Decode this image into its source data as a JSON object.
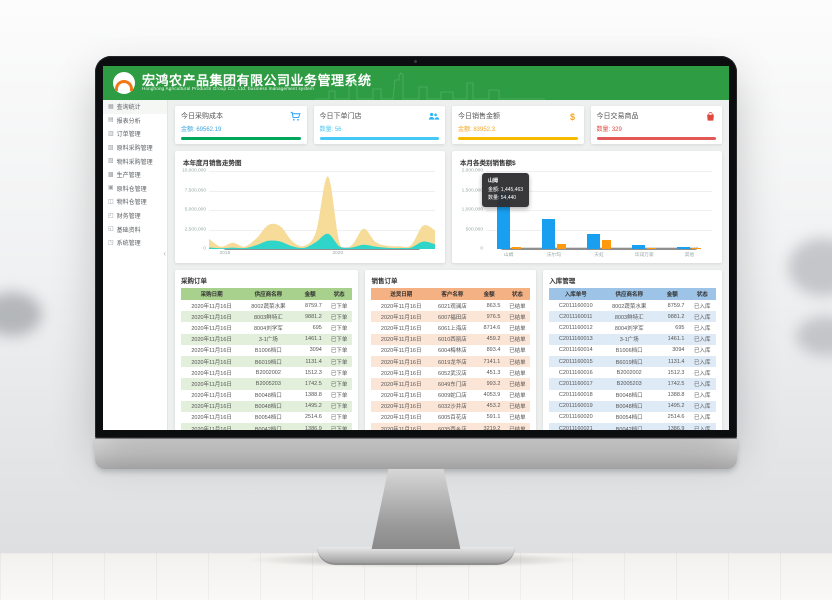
{
  "header": {
    "title": "宏鸿农产品集团有限公司业务管理系统",
    "subtitle": "Honghong Agricultural Products Group Co., Ltd. business management system",
    "logo_icon": "orange-arch-logo",
    "accent_color": "#2e9c43"
  },
  "sidebar": {
    "collapse_glyph": "‹",
    "items": [
      {
        "icon": "stats-grid-icon",
        "label": "查询统计"
      },
      {
        "icon": "report-analysis-icon",
        "label": "报表分析"
      },
      {
        "icon": "order-icon",
        "label": "订单管理"
      },
      {
        "icon": "raw-purchase-icon",
        "label": "原料采购管理"
      },
      {
        "icon": "material-purchase-icon",
        "label": "物料采购管理"
      },
      {
        "icon": "production-icon",
        "label": "生产管理"
      },
      {
        "icon": "raw-warehouse-icon",
        "label": "原料仓管理"
      },
      {
        "icon": "material-warehouse-icon",
        "label": "物料仓管理"
      },
      {
        "icon": "finance-icon",
        "label": "财务管理"
      },
      {
        "icon": "base-data-icon",
        "label": "基础资料"
      },
      {
        "icon": "system-icon",
        "label": "系统管理"
      }
    ]
  },
  "kpi_cards": [
    {
      "title": "今日采购成本",
      "label": "金额",
      "value": "69562.19",
      "icon": "cart-icon",
      "icon_color": "#1e9fff",
      "value_color": "#3aa4dd",
      "accent": "#00a65a"
    },
    {
      "title": "今日下单门店",
      "label": "数量",
      "value": "56",
      "icon": "users-icon",
      "icon_color": "#29b6f6",
      "value_color": "#4ac6f0",
      "accent": "#45c8f5"
    },
    {
      "title": "今日销售金额",
      "label": "金额",
      "value": "83952.3",
      "icon": "dollar-icon",
      "icon_color": "#f5a623",
      "value_color": "#f5a623",
      "accent": "#f7ba00"
    },
    {
      "title": "今日交易商品",
      "label": "数量",
      "value": "329",
      "icon": "bag-icon",
      "icon_color": "#e0483e",
      "value_color": "#e0483e",
      "accent": "#e25858"
    }
  ],
  "chart_data": [
    {
      "type": "area",
      "title": "本年度月销售走势图",
      "ylim": [
        0,
        10000000
      ],
      "yticks": [
        "10,000,000",
        "7,500,000",
        "5,000,000",
        "2,500,000",
        "0"
      ],
      "x_ticks": [
        {
          "label": "2019",
          "pos": 0.07
        },
        {
          "label": "2020",
          "pos": 0.57
        }
      ],
      "grid": true,
      "series": [
        {
          "name": "销售额",
          "color": "#f5d993",
          "values": [
            1300000,
            300000,
            800000,
            300000,
            1400000,
            3100000,
            2900000,
            1000000,
            400000,
            2200000,
            9300000,
            700000,
            500000,
            2600000,
            900000,
            400000,
            350000,
            500000,
            3000000,
            2400000
          ]
        },
        {
          "name": "数量",
          "color": "#2fd5c8",
          "values": [
            200000,
            100000,
            180000,
            120000,
            500000,
            1050000,
            950000,
            350000,
            150000,
            900000,
            1950000,
            300000,
            200000,
            550000,
            300000,
            150000,
            120000,
            200000,
            950000,
            600000
          ]
        }
      ]
    },
    {
      "type": "bar",
      "title": "本月各类别销售额$",
      "categories": [
        "山姆",
        "沃尔玛",
        "天虹",
        "华润万家",
        "其他"
      ],
      "ylim": [
        0,
        2000000
      ],
      "yticks": [
        "2,000,000",
        "1,500,000",
        "1,000,000",
        "500,000",
        "0"
      ],
      "grid": true,
      "series": [
        {
          "name": "金额",
          "color": "#189ff0",
          "values": [
            1445463,
            760000,
            380000,
            95000,
            45000
          ]
        },
        {
          "name": "数量",
          "color": "#ff9a0e",
          "values": [
            54440,
            120000,
            230000,
            8000,
            3000
          ]
        }
      ],
      "tooltip": {
        "category": "山姆",
        "lines": [
          "金额: 1,445,463",
          "数量: 54,440"
        ]
      }
    }
  ],
  "tables": [
    {
      "id": "purchase",
      "title": "采购订单",
      "theme": "green",
      "columns": [
        "采购日期",
        "供应商名称",
        "金额",
        "状态"
      ],
      "rows": [
        [
          "2020年11月16日",
          "8002蔬菜水果",
          "8759.7",
          "已下单"
        ],
        [
          "2020年11月16日",
          "8003鲜特汇",
          "9881.2",
          "已下单"
        ],
        [
          "2020年11月16日",
          "8004刘学军",
          "695",
          "已下单"
        ],
        [
          "2020年11月16日",
          "3-1广场",
          "1461.1",
          "已下单"
        ],
        [
          "2020年11月16日",
          "B1006档口",
          "3094",
          "已下单"
        ],
        [
          "2020年11月16日",
          "B6019档口",
          "1131.4",
          "已下单"
        ],
        [
          "2020年11月16日",
          "B2002002",
          "1512.3",
          "已下单"
        ],
        [
          "2020年11月16日",
          "B2005203",
          "1742.5",
          "已下单"
        ],
        [
          "2020年11月16日",
          "B0048档口",
          "1388.8",
          "已下单"
        ],
        [
          "2020年11月16日",
          "B0048档口",
          "1495.2",
          "已下单"
        ],
        [
          "2020年11月16日",
          "B0054档口",
          "2514.6",
          "已下单"
        ],
        [
          "2020年11月16日",
          "B0042档口",
          "1386.9",
          "已下单"
        ],
        [
          "2020年11月16日",
          "B0034档口",
          "1809.5",
          "已下单"
        ],
        [
          "2020年11月16日",
          "B0049档口",
          "2928.7",
          "已下单"
        ]
      ]
    },
    {
      "id": "sales",
      "title": "销售订单",
      "theme": "orange",
      "columns": [
        "送货日期",
        "客户名称",
        "金额",
        "状态"
      ],
      "rows": [
        [
          "2020年11月16日",
          "6021观澜店",
          "863.5",
          "已结单"
        ],
        [
          "2020年11月16日",
          "6007福田店",
          "976.5",
          "已结单"
        ],
        [
          "2020年11月16日",
          "6061上海店",
          "8714.6",
          "已结单"
        ],
        [
          "2020年11月16日",
          "6010西丽店",
          "459.2",
          "已结单"
        ],
        [
          "2020年11月16日",
          "6004梅林店",
          "893.4",
          "已结单"
        ],
        [
          "2020年11月16日",
          "6019龙华店",
          "7141.1",
          "已结单"
        ],
        [
          "2020年11月16日",
          "6052武汉店",
          "451.3",
          "已结单"
        ],
        [
          "2020年11月16日",
          "6049东门店",
          "993.2",
          "已结单"
        ],
        [
          "2020年11月16日",
          "6009蛇口店",
          "4053.9",
          "已结单"
        ],
        [
          "2020年11月16日",
          "6032沙井店",
          "453.2",
          "已结单"
        ],
        [
          "2020年11月16日",
          "6005百花店",
          "591.1",
          "已结单"
        ],
        [
          "2020年11月16日",
          "6035西乡店",
          "3219.2",
          "已结单"
        ],
        [
          "2020年11月16日",
          "6002宝安店",
          "4921.1",
          "已结单"
        ],
        [
          "2020年11月16日",
          "6018福永店",
          "9129.9",
          "已结单"
        ]
      ]
    },
    {
      "id": "inbound",
      "title": "入库管理",
      "theme": "blue",
      "columns": [
        "入库单号",
        "供应商名称",
        "金额",
        "状态"
      ],
      "rows": [
        [
          "C2011160010",
          "8002蔬菜水果",
          "8759.7",
          "已入库"
        ],
        [
          "C2011160011",
          "8003鲜特汇",
          "9881.2",
          "已入库"
        ],
        [
          "C2011160012",
          "8004刘学军",
          "695",
          "已入库"
        ],
        [
          "C2011160013",
          "3-1广场",
          "1461.1",
          "已入库"
        ],
        [
          "C2011160014",
          "B1006档口",
          "3094",
          "已入库"
        ],
        [
          "C2011160015",
          "B6019档口",
          "1131.4",
          "已入库"
        ],
        [
          "C2011160016",
          "B2002002",
          "1512.3",
          "已入库"
        ],
        [
          "C2011160017",
          "B2005203",
          "1742.5",
          "已入库"
        ],
        [
          "C2011160018",
          "B0048档口",
          "1388.8",
          "已入库"
        ],
        [
          "C2011160019",
          "B0048档口",
          "1495.2",
          "已入库"
        ],
        [
          "C2011160020",
          "B0054档口",
          "2514.6",
          "已入库"
        ],
        [
          "C2011160021",
          "B0042档口",
          "1386.9",
          "已入库"
        ],
        [
          "C2011160022",
          "B0034档口",
          "1809.5",
          "已入库"
        ],
        [
          "C2011160023",
          "B0049档口",
          "2928.7",
          "已入库"
        ]
      ]
    }
  ]
}
